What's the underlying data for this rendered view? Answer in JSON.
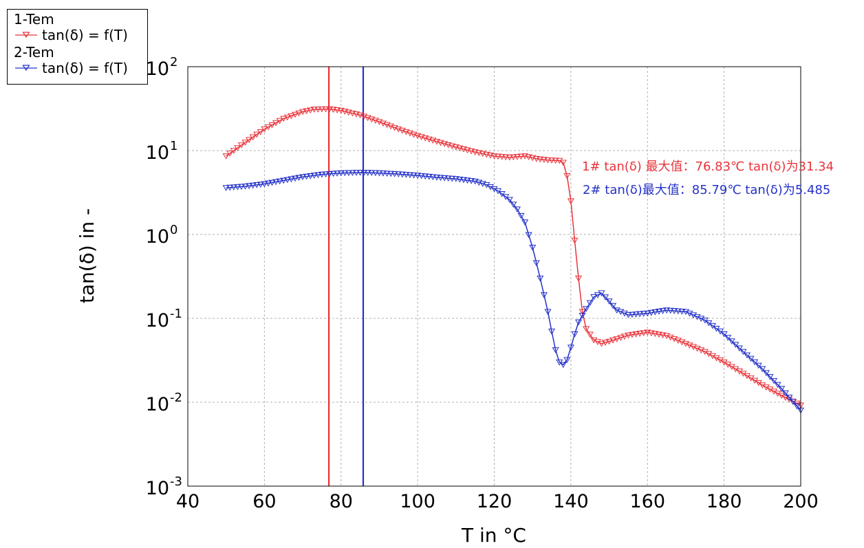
{
  "legend": {
    "groups": [
      {
        "title": "1-Tem",
        "entry": "tan(δ) = f(T)",
        "color": "#e8333a"
      },
      {
        "title": "2-Tem",
        "entry": "tan(δ) = f(T)",
        "color": "#2431c9"
      }
    ]
  },
  "chart_data": {
    "type": "line",
    "title": "",
    "xlabel": "T in °C",
    "ylabel": "tan(δ) in -",
    "xlim": [
      40,
      200
    ],
    "ylim": [
      0.001,
      100
    ],
    "yscale": "log",
    "grid": true,
    "legend_position": "top-left",
    "x_ticks": [
      "40",
      "60",
      "80",
      "100",
      "120",
      "140",
      "160",
      "180",
      "200"
    ],
    "y_ticks": [
      {
        "base": "10",
        "exp": "-3",
        "value": 0.001
      },
      {
        "base": "10",
        "exp": "-2",
        "value": 0.01
      },
      {
        "base": "10",
        "exp": "-1",
        "value": 0.1
      },
      {
        "base": "10",
        "exp": "0",
        "value": 1
      },
      {
        "base": "10",
        "exp": "1",
        "value": 10
      },
      {
        "base": "10",
        "exp": "2",
        "value": 100
      }
    ],
    "series": [
      {
        "name": "1-Tem tan(δ) = f(T)",
        "color": "#e8333a",
        "marker": "triangle-down",
        "points": [
          [
            50,
            8.6
          ],
          [
            55,
            12.5
          ],
          [
            60,
            18
          ],
          [
            65,
            24
          ],
          [
            70,
            29
          ],
          [
            73,
            31
          ],
          [
            76.83,
            31.34
          ],
          [
            80,
            30
          ],
          [
            85,
            26.5
          ],
          [
            90,
            22
          ],
          [
            95,
            18
          ],
          [
            100,
            15
          ],
          [
            105,
            12.8
          ],
          [
            110,
            11
          ],
          [
            115,
            9.6
          ],
          [
            120,
            8.6
          ],
          [
            124,
            8.3
          ],
          [
            128,
            8.6
          ],
          [
            131,
            8.0
          ],
          [
            134,
            7.7
          ],
          [
            137,
            7.6
          ],
          [
            138,
            7.2
          ],
          [
            139,
            5.0
          ],
          [
            140,
            2.5
          ],
          [
            141,
            0.85
          ],
          [
            142,
            0.3
          ],
          [
            143,
            0.12
          ],
          [
            144,
            0.075
          ],
          [
            146,
            0.055
          ],
          [
            148,
            0.05
          ],
          [
            150,
            0.053
          ],
          [
            155,
            0.063
          ],
          [
            160,
            0.068
          ],
          [
            165,
            0.062
          ],
          [
            170,
            0.05
          ],
          [
            175,
            0.04
          ],
          [
            180,
            0.03
          ],
          [
            185,
            0.022
          ],
          [
            190,
            0.016
          ],
          [
            195,
            0.012
          ],
          [
            200,
            0.0092
          ]
        ]
      },
      {
        "name": "2-Tem tan(δ) = f(T)",
        "color": "#2431c9",
        "marker": "triangle-down",
        "points": [
          [
            50,
            3.6
          ],
          [
            55,
            3.75
          ],
          [
            60,
            4.0
          ],
          [
            65,
            4.4
          ],
          [
            70,
            4.85
          ],
          [
            75,
            5.2
          ],
          [
            80,
            5.4
          ],
          [
            85.79,
            5.485
          ],
          [
            90,
            5.4
          ],
          [
            95,
            5.25
          ],
          [
            100,
            5.05
          ],
          [
            105,
            4.8
          ],
          [
            110,
            4.6
          ],
          [
            115,
            4.3
          ],
          [
            118,
            3.9
          ],
          [
            121,
            3.3
          ],
          [
            124,
            2.6
          ],
          [
            126,
            2.0
          ],
          [
            128,
            1.4
          ],
          [
            130,
            0.7
          ],
          [
            132,
            0.3
          ],
          [
            134,
            0.12
          ],
          [
            135,
            0.07
          ],
          [
            136,
            0.042
          ],
          [
            137,
            0.03
          ],
          [
            138,
            0.028
          ],
          [
            139,
            0.032
          ],
          [
            140,
            0.045
          ],
          [
            141,
            0.065
          ],
          [
            142,
            0.09
          ],
          [
            144,
            0.13
          ],
          [
            146,
            0.18
          ],
          [
            148,
            0.2
          ],
          [
            150,
            0.16
          ],
          [
            152,
            0.125
          ],
          [
            155,
            0.11
          ],
          [
            160,
            0.115
          ],
          [
            165,
            0.125
          ],
          [
            170,
            0.12
          ],
          [
            175,
            0.095
          ],
          [
            180,
            0.065
          ],
          [
            185,
            0.04
          ],
          [
            190,
            0.025
          ],
          [
            195,
            0.0145
          ],
          [
            200,
            0.008
          ]
        ]
      }
    ],
    "vertical_lines": [
      {
        "x": 76.83,
        "color": "#e8333a"
      },
      {
        "x": 85.79,
        "color": "#2431c9"
      }
    ],
    "annotations": [
      {
        "text": "1# tan(δ) 最大值：76.83℃  tan(δ)为31.34",
        "color": "#e8333a"
      },
      {
        "text": "2# tan(δ)最大值：85.79℃ tan(δ)为5.485",
        "color": "#2431c9"
      }
    ]
  }
}
